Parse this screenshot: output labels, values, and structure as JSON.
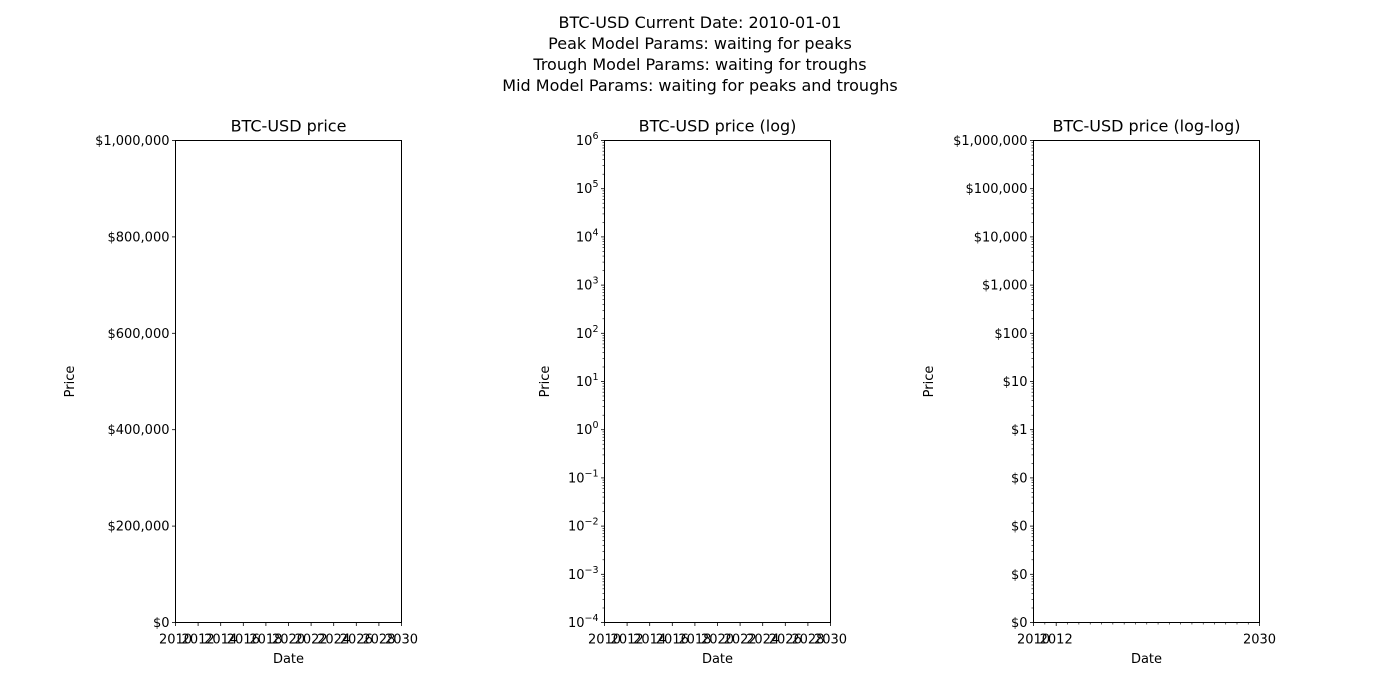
{
  "suptitle": {
    "lines": [
      "BTC-USD Current Date: 2010-01-01",
      "Peak Model Params: waiting for peaks",
      "Trough Model Params: waiting for troughs",
      "Mid Model Params: waiting for peaks and troughs"
    ]
  },
  "chart_data": [
    {
      "type": "line",
      "title": "BTC-USD price",
      "xlabel": "Date",
      "ylabel": "Price",
      "x_scale": "linear",
      "y_scale": "linear",
      "xlim": [
        "2010-01-01",
        "2030-01-01"
      ],
      "ylim": [
        0,
        1000000
      ],
      "x_ticks": [
        "2010",
        "2012",
        "2014",
        "2016",
        "2018",
        "2020",
        "2022",
        "2024",
        "2026",
        "2028",
        "2030"
      ],
      "y_ticks": [
        {
          "value": 0,
          "label": "$0"
        },
        {
          "value": 200000,
          "label": "$200,000"
        },
        {
          "value": 400000,
          "label": "$400,000"
        },
        {
          "value": 600000,
          "label": "$600,000"
        },
        {
          "value": 800000,
          "label": "$800,000"
        },
        {
          "value": 1000000,
          "label": "$1,000,000"
        }
      ],
      "series": [],
      "grid": false
    },
    {
      "type": "line",
      "title": "BTC-USD price (log)",
      "xlabel": "Date",
      "ylabel": "Price",
      "x_scale": "linear",
      "y_scale": "log",
      "xlim": [
        "2010-01-01",
        "2030-01-01"
      ],
      "ylim": [
        0.0001,
        1000000
      ],
      "x_ticks": [
        "2010",
        "2012",
        "2014",
        "2016",
        "2018",
        "2020",
        "2022",
        "2024",
        "2026",
        "2028",
        "2030"
      ],
      "y_ticks": [
        {
          "value": 0.0001,
          "base": "10",
          "exp": "−4"
        },
        {
          "value": 0.001,
          "base": "10",
          "exp": "−3"
        },
        {
          "value": 0.01,
          "base": "10",
          "exp": "−2"
        },
        {
          "value": 0.1,
          "base": "10",
          "exp": "−1"
        },
        {
          "value": 1,
          "base": "10",
          "exp": "0"
        },
        {
          "value": 10,
          "base": "10",
          "exp": "1"
        },
        {
          "value": 100,
          "base": "10",
          "exp": "2"
        },
        {
          "value": 1000,
          "base": "10",
          "exp": "3"
        },
        {
          "value": 10000,
          "base": "10",
          "exp": "4"
        },
        {
          "value": 100000,
          "base": "10",
          "exp": "5"
        },
        {
          "value": 1000000,
          "base": "10",
          "exp": "6"
        }
      ],
      "series": [],
      "grid": false
    },
    {
      "type": "line",
      "title": "BTC-USD price (log-log)",
      "xlabel": "Date",
      "ylabel": "Price",
      "x_scale": "log",
      "y_scale": "log",
      "xlim": [
        "2010",
        "2030"
      ],
      "ylim": [
        0.0001,
        1000000
      ],
      "x_ticks": [
        {
          "value": 2010,
          "label": "2010"
        },
        {
          "value": 2012,
          "label": "2012"
        },
        {
          "value": 2030,
          "label": "2030"
        }
      ],
      "y_ticks": [
        {
          "value": 0.0001,
          "label": "$0"
        },
        {
          "value": 0.001,
          "label": "$0"
        },
        {
          "value": 0.01,
          "label": "$0"
        },
        {
          "value": 0.1,
          "label": "$0"
        },
        {
          "value": 1,
          "label": "$1"
        },
        {
          "value": 10,
          "label": "$10"
        },
        {
          "value": 100,
          "label": "$100"
        },
        {
          "value": 1000,
          "label": "$1,000"
        },
        {
          "value": 10000,
          "label": "$10,000"
        },
        {
          "value": 100000,
          "label": "$100,000"
        },
        {
          "value": 1000000,
          "label": "$1,000,000"
        }
      ],
      "series": [],
      "grid": false
    }
  ]
}
